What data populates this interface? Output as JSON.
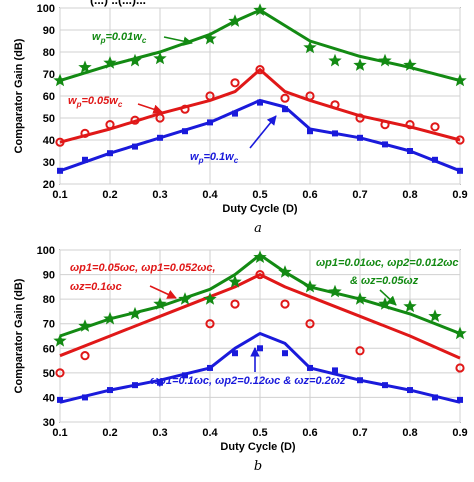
{
  "top_fragment": "(...)      ..(...)...",
  "chart_data": [
    {
      "type": "line",
      "caption": "a",
      "xlabel": "Duty Cycle (D)",
      "ylabel": "Comparator Gain (dB)",
      "xlim": [
        0.1,
        0.9
      ],
      "ylim": [
        20,
        100
      ],
      "xticks": [
        "0.1",
        "0.2",
        "0.3",
        "0.4",
        "0.5",
        "0.6",
        "0.7",
        "0.8",
        "0.9"
      ],
      "yticks": [
        "20",
        "30",
        "40",
        "50",
        "60",
        "70",
        "80",
        "90",
        "100"
      ],
      "grid": true,
      "series": [
        {
          "name": "w_p=0.01w_c",
          "color": "#138a13",
          "marker": "star",
          "line_x": [
            0.1,
            0.2,
            0.3,
            0.4,
            0.45,
            0.5,
            0.55,
            0.6,
            0.7,
            0.8,
            0.9
          ],
          "line_y": [
            67,
            74,
            80,
            88,
            94,
            99,
            92,
            85,
            78,
            73,
            67
          ],
          "marker_x": [
            0.1,
            0.15,
            0.2,
            0.25,
            0.3,
            0.4,
            0.45,
            0.5,
            0.6,
            0.65,
            0.7,
            0.75,
            0.8,
            0.9
          ],
          "marker_y": [
            67,
            73,
            75,
            76,
            77,
            86,
            94,
            99,
            82,
            76,
            74,
            76,
            74,
            67
          ]
        },
        {
          "name": "w_p=0.05w_c",
          "color": "#e01818",
          "marker": "circle",
          "line_x": [
            0.1,
            0.2,
            0.3,
            0.4,
            0.45,
            0.5,
            0.55,
            0.6,
            0.7,
            0.8,
            0.9
          ],
          "line_y": [
            39,
            45,
            52,
            58,
            62,
            72,
            62,
            58,
            51,
            46,
            40
          ],
          "marker_x": [
            0.1,
            0.15,
            0.2,
            0.25,
            0.3,
            0.35,
            0.4,
            0.45,
            0.5,
            0.55,
            0.6,
            0.65,
            0.7,
            0.75,
            0.8,
            0.85,
            0.9
          ],
          "marker_y": [
            39,
            43,
            47,
            49,
            50,
            54,
            60,
            66,
            72,
            59,
            60,
            56,
            50,
            47,
            47,
            46,
            40
          ]
        },
        {
          "name": "w_p=0.1w_c",
          "color": "#1a1adb",
          "marker": "square",
          "line_x": [
            0.1,
            0.2,
            0.3,
            0.4,
            0.45,
            0.5,
            0.55,
            0.6,
            0.7,
            0.8,
            0.9
          ],
          "line_y": [
            26,
            34,
            41,
            48,
            53,
            58,
            55,
            45,
            41,
            35,
            26
          ],
          "marker_x": [
            0.1,
            0.15,
            0.2,
            0.25,
            0.3,
            0.35,
            0.4,
            0.45,
            0.5,
            0.55,
            0.6,
            0.65,
            0.7,
            0.75,
            0.8,
            0.85,
            0.9
          ],
          "marker_y": [
            26,
            31,
            34,
            37,
            41,
            44,
            48,
            52,
            57,
            54,
            44,
            43,
            41,
            38,
            35,
            31,
            26
          ]
        }
      ],
      "annotations": [
        {
          "series": 0,
          "lead": "w",
          "sub1": "p",
          "mid": "=0.01w",
          "sub2": "c"
        },
        {
          "series": 1,
          "lead": "w",
          "sub1": "p",
          "mid": "=0.05w",
          "sub2": "c"
        },
        {
          "series": 2,
          "lead": "w",
          "sub1": "p",
          "mid": "=0.1w",
          "sub2": "c"
        }
      ]
    },
    {
      "type": "line",
      "caption": "b",
      "xlabel": "Duty Cycle (D)",
      "ylabel": "Comparator Gain (dB)",
      "xlim": [
        0.1,
        0.9
      ],
      "ylim": [
        30,
        100
      ],
      "xticks": [
        "0.1",
        "0.2",
        "0.3",
        "0.4",
        "0.5",
        "0.6",
        "0.7",
        "0.8",
        "0.9"
      ],
      "yticks": [
        "30",
        "40",
        "50",
        "60",
        "70",
        "80",
        "90",
        "100"
      ],
      "grid": true,
      "series": [
        {
          "name": "green",
          "color": "#138a13",
          "marker": "star",
          "line_x": [
            0.1,
            0.2,
            0.3,
            0.4,
            0.45,
            0.5,
            0.55,
            0.6,
            0.7,
            0.8,
            0.9
          ],
          "line_y": [
            65,
            72,
            77,
            84,
            90,
            98,
            91,
            85,
            80,
            74,
            66
          ],
          "marker_x": [
            0.1,
            0.15,
            0.2,
            0.25,
            0.3,
            0.35,
            0.4,
            0.45,
            0.5,
            0.55,
            0.6,
            0.65,
            0.7,
            0.75,
            0.8,
            0.85,
            0.9
          ],
          "marker_y": [
            63,
            69,
            72,
            74,
            78,
            80,
            80,
            87,
            97,
            91,
            85,
            83,
            80,
            78,
            77,
            73,
            66
          ]
        },
        {
          "name": "red",
          "color": "#e01818",
          "marker": "circle",
          "line_x": [
            0.1,
            0.2,
            0.3,
            0.4,
            0.45,
            0.5,
            0.55,
            0.6,
            0.7,
            0.8,
            0.9
          ],
          "line_y": [
            57,
            65,
            73,
            81,
            85,
            90,
            85,
            81,
            73,
            65,
            56
          ],
          "marker_x": [
            0.1,
            0.15,
            0.4,
            0.45,
            0.5,
            0.55,
            0.6,
            0.7,
            0.9
          ],
          "marker_y": [
            50,
            57,
            70,
            78,
            90,
            78,
            70,
            59,
            52
          ]
        },
        {
          "name": "blue",
          "color": "#1a1adb",
          "marker": "square",
          "line_x": [
            0.1,
            0.2,
            0.3,
            0.4,
            0.45,
            0.5,
            0.55,
            0.6,
            0.7,
            0.8,
            0.9
          ],
          "line_y": [
            38,
            43,
            47,
            52,
            60,
            66,
            62,
            52,
            47,
            43,
            38
          ],
          "marker_x": [
            0.1,
            0.15,
            0.2,
            0.25,
            0.3,
            0.35,
            0.4,
            0.45,
            0.5,
            0.55,
            0.6,
            0.65,
            0.7,
            0.75,
            0.8,
            0.85,
            0.9
          ],
          "marker_y": [
            39,
            40,
            43,
            45,
            46,
            49,
            52,
            58,
            60,
            58,
            52,
            51,
            47,
            45,
            43,
            40,
            39
          ]
        }
      ],
      "annotations": [
        {
          "series": 1,
          "line1": "ωp1=0.05ωc, ωp1=0.052ωc,",
          "line2": "ωz=0.1ωc"
        },
        {
          "series": 0,
          "line1": "ωp1=0.01ωc, ωp2=0.012ωc",
          "line2": "& ωz=0.05ωz"
        },
        {
          "series": 2,
          "line1": "ωp1=0.1ωc, ωp2=0.12ωc & ωz=0.2ωz"
        }
      ]
    }
  ]
}
